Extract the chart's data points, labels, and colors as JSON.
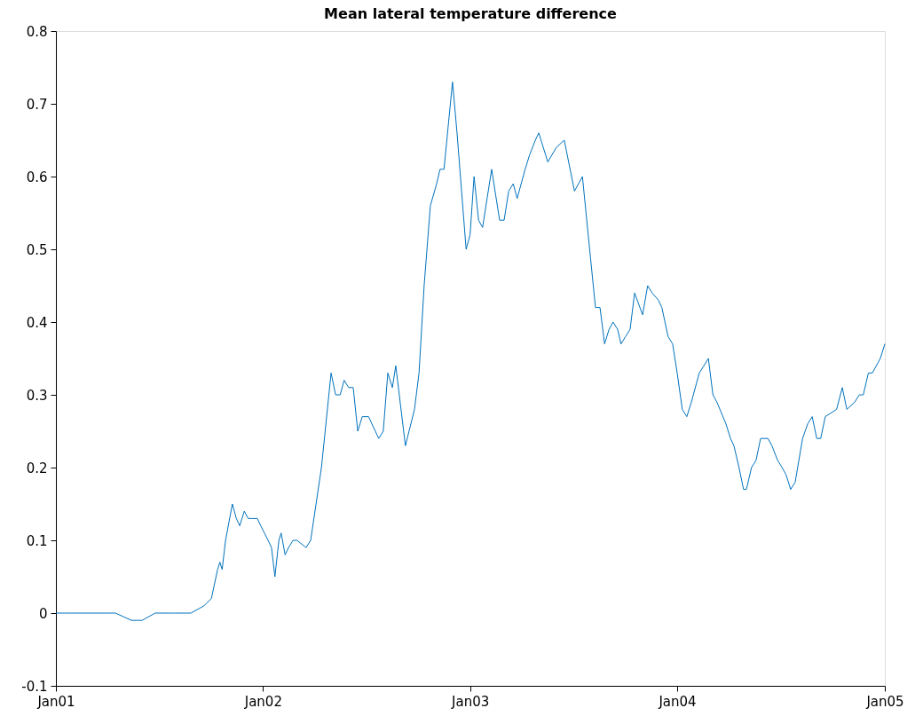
{
  "chart_data": {
    "type": "line",
    "title": "Mean lateral  temperature difference",
    "x": [
      "2001-01-01",
      "2001-01-28",
      "2001-02-12",
      "2001-03-31",
      "2001-04-16",
      "2001-05-14",
      "2001-05-22",
      "2001-06-02",
      "2001-06-25",
      "2001-07-26",
      "2001-07-30",
      "2001-08-11",
      "2001-08-27",
      "2001-09-19",
      "2001-10-02",
      "2001-10-13",
      "2001-10-17",
      "2001-10-21",
      "2001-10-27",
      "2001-11-08",
      "2001-11-15",
      "2001-11-21",
      "2001-11-29",
      "2001-12-06",
      "2001-12-13",
      "2001-12-22",
      "2001-12-28",
      "2002-01-10",
      "2002-01-16",
      "2002-01-22",
      "2002-01-29",
      "2002-02-02",
      "2002-02-09",
      "2002-02-15",
      "2002-02-23",
      "2002-03-02",
      "2002-03-18",
      "2002-03-26",
      "2002-04-14",
      "2002-05-01",
      "2002-05-09",
      "2002-05-17",
      "2002-05-24",
      "2002-06-01",
      "2002-06-09",
      "2002-06-17",
      "2002-06-25",
      "2002-07-06",
      "2002-07-24",
      "2002-08-01",
      "2002-08-09",
      "2002-08-17",
      "2002-08-23",
      "2002-09-09",
      "2002-09-25",
      "2002-10-03",
      "2002-10-12",
      "2002-10-23",
      "2002-11-03",
      "2002-11-09",
      "2002-11-16",
      "2002-12-01",
      "2002-12-09",
      "2002-12-25",
      "2003-01-01",
      "2003-01-08",
      "2003-01-16",
      "2003-01-23",
      "2003-02-08",
      "2003-02-22",
      "2003-03-02",
      "2003-03-10",
      "2003-03-18",
      "2003-03-25",
      "2003-04-08",
      "2003-04-16",
      "2003-04-26",
      "2003-05-02",
      "2003-05-18",
      "2003-06-02",
      "2003-06-16",
      "2003-07-04",
      "2003-07-18",
      "2003-08-01",
      "2003-08-10",
      "2003-08-18",
      "2003-08-26",
      "2003-09-03",
      "2003-09-10",
      "2003-09-18",
      "2003-09-24",
      "2003-10-02",
      "2003-10-10",
      "2003-10-18",
      "2003-11-01",
      "2003-11-10",
      "2003-11-18",
      "2003-11-29",
      "2003-12-05",
      "2003-12-16",
      "2003-12-24",
      "2004-01-01",
      "2004-01-10",
      "2004-01-18",
      "2004-01-26",
      "2004-02-09",
      "2004-02-17",
      "2004-02-25",
      "2004-03-04",
      "2004-03-11",
      "2004-03-27",
      "2004-04-04",
      "2004-04-10",
      "2004-04-19",
      "2004-04-27",
      "2004-05-02",
      "2004-05-11",
      "2004-05-19",
      "2004-05-27",
      "2004-06-09",
      "2004-06-16",
      "2004-06-26",
      "2004-07-04",
      "2004-07-11",
      "2004-07-19",
      "2004-07-27",
      "2004-08-09",
      "2004-08-18",
      "2004-08-26",
      "2004-09-03",
      "2004-09-10",
      "2004-09-18",
      "2004-10-08",
      "2004-10-18",
      "2004-10-26",
      "2004-11-09",
      "2004-11-17",
      "2004-11-24",
      "2004-12-03",
      "2004-12-10",
      "2004-12-24",
      "2005-01-01"
    ],
    "series": [
      {
        "color": "#0072bd",
        "values": [
          0,
          0,
          0,
          0,
          0,
          -0.01,
          -0.01,
          -0.01,
          0,
          0,
          0,
          0,
          0,
          0.01,
          0.02,
          0.06,
          0.07,
          0.06,
          0.1,
          0.15,
          0.13,
          0.12,
          0.14,
          0.13,
          0.13,
          0.13,
          0.12,
          0.1,
          0.09,
          0.05,
          0.1,
          0.11,
          0.08,
          0.09,
          0.1,
          0.1,
          0.09,
          0.1,
          0.2,
          0.33,
          0.3,
          0.3,
          0.32,
          0.31,
          0.31,
          0.25,
          0.27,
          0.27,
          0.24,
          0.25,
          0.33,
          0.31,
          0.34,
          0.23,
          0.28,
          0.33,
          0.45,
          0.56,
          0.59,
          0.61,
          0.61,
          0.73,
          0.66,
          0.5,
          0.52,
          0.6,
          0.54,
          0.53,
          0.61,
          0.54,
          0.54,
          0.58,
          0.59,
          0.57,
          0.61,
          0.63,
          0.65,
          0.66,
          0.62,
          0.64,
          0.65,
          0.58,
          0.6,
          0.49,
          0.42,
          0.42,
          0.37,
          0.39,
          0.4,
          0.39,
          0.37,
          0.38,
          0.39,
          0.44,
          0.41,
          0.45,
          0.44,
          0.43,
          0.42,
          0.38,
          0.37,
          0.33,
          0.28,
          0.27,
          0.29,
          0.33,
          0.34,
          0.35,
          0.3,
          0.29,
          0.26,
          0.24,
          0.23,
          0.2,
          0.17,
          0.17,
          0.2,
          0.21,
          0.24,
          0.24,
          0.23,
          0.21,
          0.2,
          0.19,
          0.17,
          0.18,
          0.24,
          0.26,
          0.27,
          0.24,
          0.24,
          0.27,
          0.28,
          0.31,
          0.28,
          0.29,
          0.3,
          0.3,
          0.33,
          0.33,
          0.35,
          0.37
        ]
      }
    ],
    "xlim": [
      "2001-01-01",
      "2005-01-01"
    ],
    "xticks": [
      {
        "value": "2001-01-01",
        "label": "Jan01"
      },
      {
        "value": "2002-01-01",
        "label": "Jan02"
      },
      {
        "value": "2003-01-01",
        "label": "Jan03"
      },
      {
        "value": "2004-01-01",
        "label": "Jan04"
      },
      {
        "value": "2005-01-01",
        "label": "Jan05"
      }
    ],
    "ylim": [
      -0.1,
      0.8
    ],
    "yticks": [
      -0.1,
      0,
      0.1,
      0.2,
      0.3,
      0.4,
      0.5,
      0.6,
      0.7,
      0.8
    ],
    "grid": false,
    "marker": "none",
    "line_style": "solid"
  }
}
